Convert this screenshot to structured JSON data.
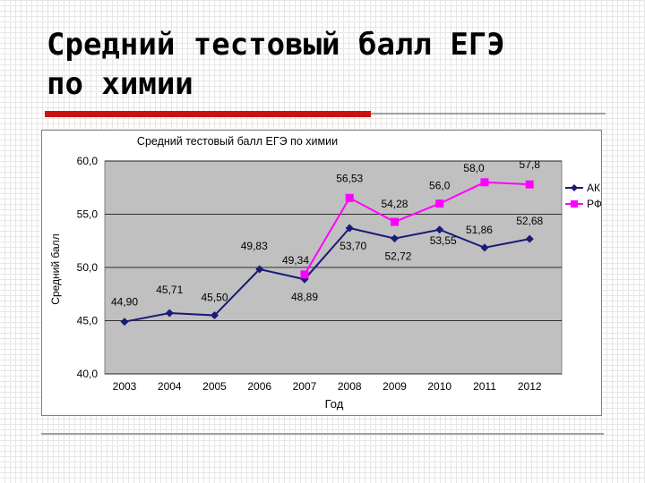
{
  "slide": {
    "title_line1": "Средний тестовый балл ЕГЭ",
    "title_line2": "по химии"
  },
  "chart_data": {
    "type": "line",
    "title": "Средний тестовый балл ЕГЭ по химии",
    "xlabel": "Год",
    "ylabel": "Средний балл",
    "categories": [
      "2003",
      "2004",
      "2005",
      "2006",
      "2007",
      "2008",
      "2009",
      "2010",
      "2011",
      "2012"
    ],
    "ylim": [
      40,
      60
    ],
    "yticks": [
      40,
      45,
      50,
      55,
      60
    ],
    "ytick_labels": [
      "40,0",
      "45,0",
      "50,0",
      "55,0",
      "60,0"
    ],
    "grid": "horizontal",
    "legend_position": "right",
    "series": [
      {
        "name": "АК",
        "color": "#1a1a7a",
        "marker": "diamond",
        "values": [
          44.9,
          45.71,
          45.5,
          49.83,
          48.89,
          53.7,
          52.72,
          53.55,
          51.86,
          52.68
        ],
        "labels": [
          "44,90",
          "45,71",
          "45,50",
          "49,83",
          "48,89",
          "53,70",
          "52,72",
          "53,55",
          "51,86",
          "52,68"
        ]
      },
      {
        "name": "РФ",
        "color": "#ff00ff",
        "marker": "square",
        "values": [
          null,
          null,
          null,
          null,
          49.34,
          56.53,
          54.28,
          56.0,
          58.0,
          57.8
        ],
        "labels": [
          "",
          "",
          "",
          "",
          "49,34",
          "56,53",
          "54,28",
          "56,0",
          "58,0",
          "57,8"
        ]
      }
    ],
    "plot_background": "#c0c0c0"
  }
}
